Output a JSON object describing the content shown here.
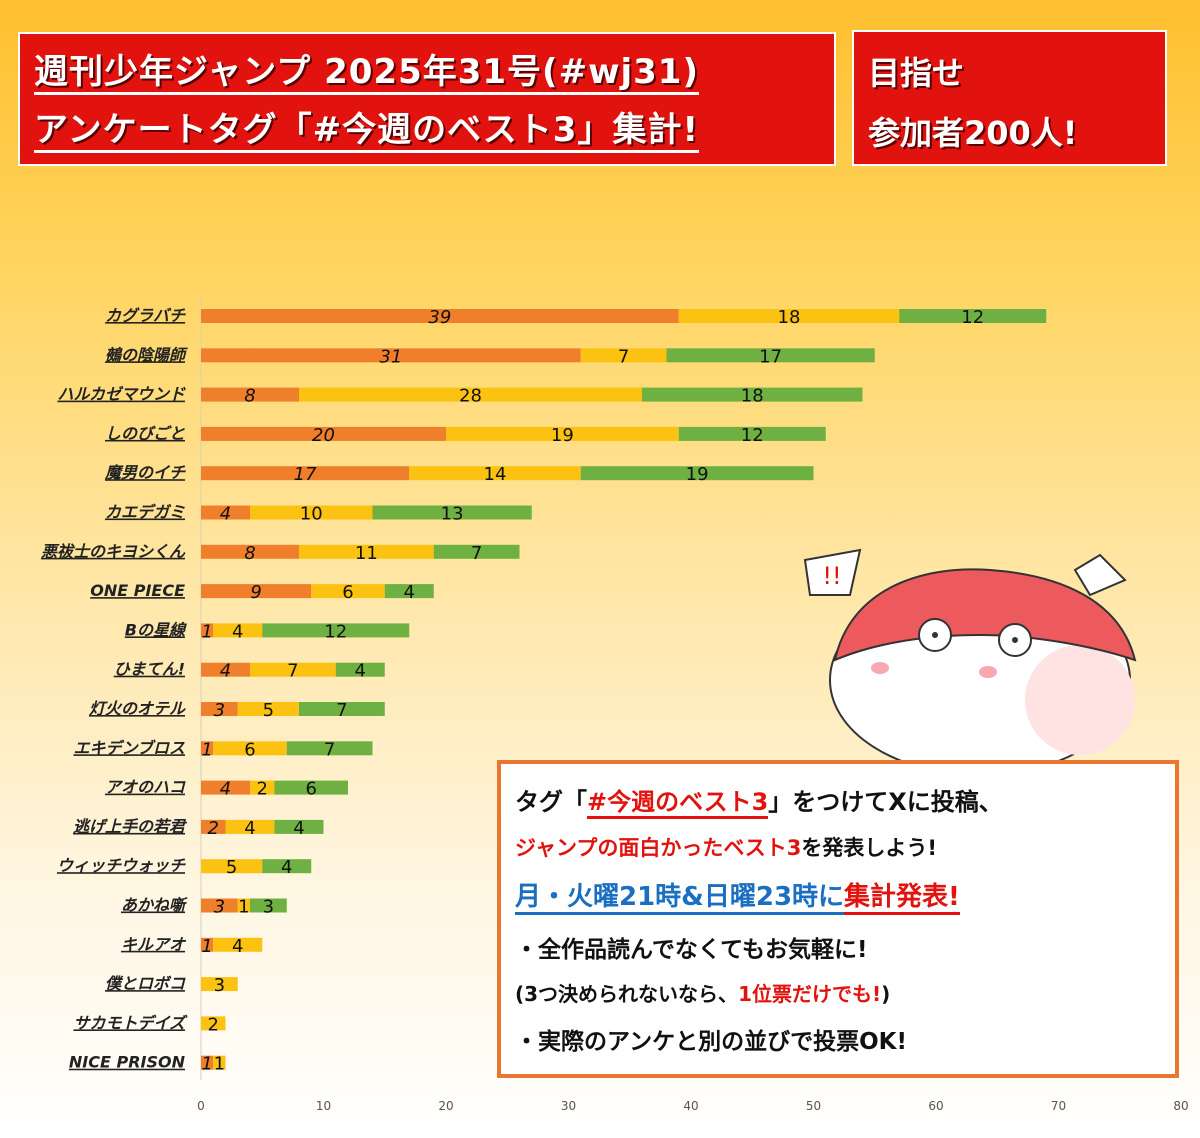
{
  "header": {
    "title_line1": "週刊少年ジャンプ 2025年31号(#wj31)",
    "title_line2": "アンケートタグ「#今週のベスト3」集計!",
    "goal_line1": "目指せ",
    "goal_line2": "参加者200人!"
  },
  "info": {
    "line1_pre": "タグ「",
    "line1_tag": "#今週のベスト3",
    "line1_post": "」をつけてXに投稿、",
    "line2_red": "ジャンプの面白かったベスト3",
    "line2_post": "を発表しよう!",
    "line3_blue": "月・火曜21時&日曜23時に",
    "line3_red": "集計発表!",
    "line4": "・全作品読んでなくてもお気軽に!",
    "line5_pre": "(3つ決められないなら、",
    "line5_red": "1位票だけでも!",
    "line5_post": ")",
    "line6": "・実際のアンケと別の並びで投票OK!"
  },
  "colors": {
    "first": "#f07f2c",
    "second": "#fbc211",
    "third": "#6fb043",
    "accent": "#e2120e"
  },
  "mascot": {
    "icon": "round-mascot-with-red-cap",
    "exclaim": "!!"
  },
  "chart_data": {
    "type": "bar",
    "orientation": "horizontal",
    "stacked": true,
    "categories": [
      "カグラバチ",
      "鵺の陰陽師",
      "ハルカゼマウンド",
      "しのびごと",
      "魔男のイチ",
      "カエデガミ",
      "悪祓士のキヨシくん",
      "ONE PIECE",
      "Bの星線",
      "ひまてん!",
      "灯火のオテル",
      "エキデンブロス",
      "アオのハコ",
      "逃げ上手の若君",
      "ウィッチウォッチ",
      "あかね噺",
      "キルアオ",
      "僕とロボコ",
      "サカモトデイズ",
      "NICE PRISON"
    ],
    "series": [
      {
        "values": [
          39,
          31,
          8,
          20,
          17,
          4,
          8,
          9,
          1,
          4,
          3,
          1,
          4,
          2,
          0,
          3,
          1,
          0,
          0,
          1
        ]
      },
      {
        "values": [
          18,
          7,
          28,
          19,
          14,
          10,
          11,
          6,
          4,
          7,
          5,
          6,
          2,
          4,
          5,
          1,
          4,
          3,
          2,
          1
        ]
      },
      {
        "values": [
          12,
          17,
          18,
          12,
          19,
          13,
          7,
          4,
          12,
          4,
          7,
          7,
          6,
          4,
          4,
          3,
          0,
          0,
          0,
          0
        ]
      }
    ],
    "xlim": [
      0,
      80
    ],
    "xticks": [
      0,
      10,
      20,
      30,
      40,
      50,
      60,
      70,
      80
    ],
    "grid": false,
    "legend": "none"
  }
}
